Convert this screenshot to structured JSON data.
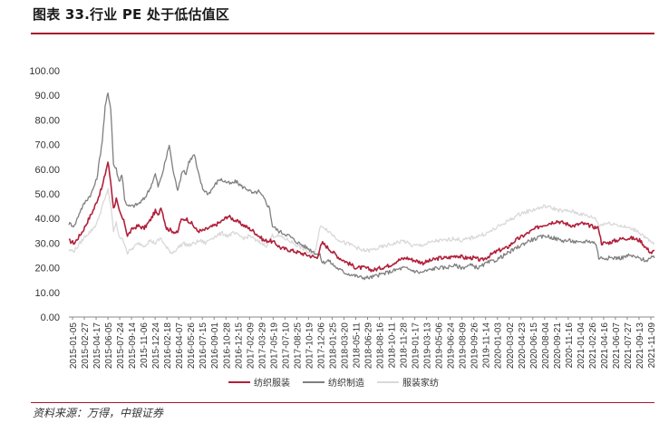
{
  "title": "图表 33.行业 PE 处于低估值区",
  "source": "资料来源：万得，中银证券",
  "chart_data": {
    "type": "line",
    "ylim": [
      0,
      100
    ],
    "yticks": [
      "0.00",
      "10.00",
      "20.00",
      "30.00",
      "40.00",
      "50.00",
      "60.00",
      "70.00",
      "80.00",
      "90.00",
      "100.00"
    ],
    "xlabels": [
      "2015-01-05",
      "2015-02-27",
      "2015-04-17",
      "2015-06-05",
      "2015-07-24",
      "2015-09-14",
      "2015-11-06",
      "2015-12-24",
      "2016-02-18",
      "2016-04-07",
      "2016-05-26",
      "2016-07-15",
      "2016-09-01",
      "2016-10-28",
      "2016-12-15",
      "2017-02-09",
      "2017-03-29",
      "2017-05-19",
      "2017-07-10",
      "2017-08-25",
      "2017-10-19",
      "2017-12-06",
      "2018-01-25",
      "2018-03-20",
      "2018-05-11",
      "2018-06-29",
      "2018-08-16",
      "2018-10-11",
      "2018-11-28",
      "2019-01-17",
      "2019-03-13",
      "2019-05-06",
      "2019-06-24",
      "2019-08-09",
      "2019-09-26",
      "2019-11-14",
      "2020-01-03",
      "2020-03-02",
      "2020-04-23",
      "2020-06-15",
      "2020-08-04",
      "2020-09-21",
      "2020-11-16",
      "2021-01-04",
      "2021-02-26",
      "2021-04-16",
      "2021-06-07",
      "2021-07-27",
      "2021-09-13",
      "2021-11-09"
    ],
    "grid": false,
    "legend_position": "bottom",
    "series": [
      {
        "name": "纺织服装",
        "color": "#b0203a",
        "values": [
          31,
          34,
          37,
          40,
          45,
          51,
          56,
          63,
          42,
          47,
          38,
          32,
          34,
          37,
          36,
          38,
          37,
          41,
          36,
          35,
          35,
          34,
          35,
          36,
          39,
          40,
          38,
          35,
          35,
          35,
          36,
          37,
          38,
          39,
          40,
          41,
          39,
          38,
          37,
          36,
          35,
          33,
          34,
          33,
          32,
          31,
          31,
          30,
          29,
          28,
          28,
          27,
          27,
          26,
          26,
          25,
          25,
          25,
          25,
          27,
          30,
          30,
          28,
          27,
          26,
          24,
          23,
          22,
          21,
          20,
          20,
          20,
          21,
          20,
          20,
          19,
          19,
          19,
          20,
          21,
          23,
          24,
          24,
          23,
          22,
          22,
          23,
          23,
          24,
          25,
          24,
          24,
          25,
          24,
          24,
          24,
          24,
          23,
          23,
          24,
          25,
          26,
          23,
          26,
          27,
          27,
          28,
          30,
          31,
          32,
          33,
          35,
          36,
          37,
          38,
          39,
          40,
          39,
          38,
          38,
          37,
          38,
          37,
          37,
          36,
          35,
          30,
          30,
          30,
          31,
          32,
          32,
          33,
          33,
          32,
          30,
          28,
          26,
          27
        ],
        "anchors": [
          [
            0,
            31
          ],
          [
            2,
            30
          ],
          [
            5,
            35
          ],
          [
            9,
            44
          ],
          [
            12,
            53
          ],
          [
            14,
            63
          ],
          [
            15,
            55
          ],
          [
            16,
            44
          ],
          [
            17,
            48
          ],
          [
            18,
            43
          ],
          [
            20,
            38
          ],
          [
            21,
            33
          ],
          [
            23,
            36
          ],
          [
            25,
            37
          ],
          [
            27,
            36
          ],
          [
            29,
            39
          ],
          [
            31,
            43
          ],
          [
            32,
            41
          ],
          [
            33,
            45
          ],
          [
            35,
            36
          ],
          [
            37,
            35
          ],
          [
            39,
            34
          ],
          [
            40,
            39
          ],
          [
            42,
            40
          ],
          [
            44,
            38
          ],
          [
            46,
            35
          ],
          [
            48,
            35
          ],
          [
            52,
            37
          ],
          [
            55,
            39
          ],
          [
            57,
            41
          ],
          [
            60,
            39
          ],
          [
            63,
            37
          ],
          [
            66,
            35
          ],
          [
            68,
            33
          ],
          [
            70,
            31
          ],
          [
            72,
            31
          ],
          [
            74,
            30
          ],
          [
            76,
            28
          ],
          [
            80,
            27
          ],
          [
            83,
            26
          ],
          [
            86,
            25
          ],
          [
            89,
            24
          ],
          [
            90,
            28
          ],
          [
            91,
            30
          ],
          [
            94,
            27
          ],
          [
            97,
            24
          ],
          [
            100,
            22
          ],
          [
            103,
            20
          ],
          [
            106,
            20
          ],
          [
            109,
            19
          ],
          [
            112,
            20
          ],
          [
            115,
            21
          ],
          [
            118,
            23
          ],
          [
            121,
            24
          ],
          [
            124,
            23
          ],
          [
            127,
            22
          ],
          [
            130,
            23
          ],
          [
            133,
            24
          ],
          [
            136,
            24
          ],
          [
            139,
            25
          ],
          [
            142,
            24
          ],
          [
            145,
            24
          ],
          [
            148,
            23
          ],
          [
            151,
            25
          ],
          [
            154,
            27
          ],
          [
            157,
            28
          ],
          [
            160,
            31
          ],
          [
            163,
            33
          ],
          [
            166,
            35
          ],
          [
            169,
            37
          ],
          [
            172,
            38
          ],
          [
            175,
            39
          ],
          [
            178,
            38
          ],
          [
            181,
            37
          ],
          [
            184,
            38
          ],
          [
            187,
            37
          ],
          [
            190,
            36
          ],
          [
            191,
            30
          ],
          [
            193,
            30
          ],
          [
            196,
            31
          ],
          [
            199,
            32
          ],
          [
            202,
            32
          ],
          [
            205,
            31
          ],
          [
            207,
            28
          ],
          [
            209,
            26
          ],
          [
            210,
            27
          ]
        ]
      },
      {
        "name": "纺织制造",
        "color": "#7f7f7f",
        "anchors": [
          [
            0,
            38
          ],
          [
            2,
            37
          ],
          [
            4,
            43
          ],
          [
            6,
            47
          ],
          [
            8,
            50
          ],
          [
            10,
            56
          ],
          [
            12,
            72
          ],
          [
            13,
            85
          ],
          [
            14,
            91
          ],
          [
            15,
            85
          ],
          [
            16,
            62
          ],
          [
            17,
            60
          ],
          [
            18,
            55
          ],
          [
            19,
            58
          ],
          [
            20,
            48
          ],
          [
            21,
            45
          ],
          [
            23,
            45
          ],
          [
            25,
            46
          ],
          [
            27,
            48
          ],
          [
            29,
            52
          ],
          [
            31,
            58
          ],
          [
            32,
            53
          ],
          [
            33,
            56
          ],
          [
            35,
            65
          ],
          [
            36,
            70
          ],
          [
            37,
            62
          ],
          [
            38,
            56
          ],
          [
            39,
            52
          ],
          [
            41,
            60
          ],
          [
            42,
            58
          ],
          [
            43,
            63
          ],
          [
            45,
            66
          ],
          [
            46,
            60
          ],
          [
            48,
            52
          ],
          [
            50,
            50
          ],
          [
            52,
            53
          ],
          [
            54,
            56
          ],
          [
            56,
            55
          ],
          [
            58,
            54
          ],
          [
            60,
            55
          ],
          [
            62,
            53
          ],
          [
            64,
            52
          ],
          [
            66,
            50
          ],
          [
            68,
            51
          ],
          [
            70,
            48
          ],
          [
            72,
            44
          ],
          [
            73,
            37
          ],
          [
            75,
            35
          ],
          [
            77,
            34
          ],
          [
            79,
            33
          ],
          [
            81,
            31
          ],
          [
            84,
            29
          ],
          [
            87,
            27
          ],
          [
            90,
            25
          ],
          [
            91,
            22
          ],
          [
            93,
            23
          ],
          [
            96,
            20
          ],
          [
            99,
            18
          ],
          [
            102,
            17
          ],
          [
            105,
            16
          ],
          [
            108,
            16
          ],
          [
            111,
            17
          ],
          [
            114,
            18
          ],
          [
            117,
            19
          ],
          [
            120,
            20
          ],
          [
            123,
            19
          ],
          [
            126,
            18
          ],
          [
            129,
            19
          ],
          [
            132,
            20
          ],
          [
            135,
            20
          ],
          [
            138,
            21
          ],
          [
            141,
            20
          ],
          [
            144,
            21
          ],
          [
            147,
            20
          ],
          [
            150,
            22
          ],
          [
            153,
            23
          ],
          [
            156,
            25
          ],
          [
            159,
            27
          ],
          [
            162,
            29
          ],
          [
            165,
            31
          ],
          [
            168,
            32
          ],
          [
            171,
            33
          ],
          [
            174,
            32
          ],
          [
            177,
            31
          ],
          [
            180,
            31
          ],
          [
            183,
            30
          ],
          [
            186,
            31
          ],
          [
            189,
            30
          ],
          [
            190,
            24
          ],
          [
            192,
            24
          ],
          [
            195,
            24
          ],
          [
            198,
            24
          ],
          [
            201,
            25
          ],
          [
            204,
            24
          ],
          [
            207,
            23
          ],
          [
            209,
            24
          ],
          [
            210,
            24
          ]
        ]
      },
      {
        "name": "服装家纺",
        "color": "#d9d9d9",
        "anchors": [
          [
            0,
            27
          ],
          [
            2,
            27
          ],
          [
            4,
            30
          ],
          [
            6,
            33
          ],
          [
            8,
            35
          ],
          [
            10,
            38
          ],
          [
            12,
            45
          ],
          [
            13,
            48
          ],
          [
            14,
            52
          ],
          [
            15,
            45
          ],
          [
            16,
            35
          ],
          [
            17,
            38
          ],
          [
            18,
            33
          ],
          [
            20,
            30
          ],
          [
            21,
            26
          ],
          [
            23,
            28
          ],
          [
            25,
            30
          ],
          [
            27,
            29
          ],
          [
            29,
            31
          ],
          [
            31,
            30
          ],
          [
            33,
            32
          ],
          [
            35,
            28
          ],
          [
            37,
            26
          ],
          [
            39,
            28
          ],
          [
            41,
            30
          ],
          [
            43,
            29
          ],
          [
            45,
            30
          ],
          [
            47,
            31
          ],
          [
            49,
            30
          ],
          [
            51,
            32
          ],
          [
            53,
            33
          ],
          [
            55,
            34
          ],
          [
            57,
            33
          ],
          [
            59,
            34
          ],
          [
            61,
            33
          ],
          [
            63,
            32
          ],
          [
            65,
            33
          ],
          [
            67,
            31
          ],
          [
            69,
            30
          ],
          [
            71,
            29
          ],
          [
            73,
            33
          ],
          [
            75,
            33
          ],
          [
            77,
            32
          ],
          [
            79,
            31
          ],
          [
            82,
            29
          ],
          [
            85,
            27
          ],
          [
            88,
            25
          ],
          [
            90,
            36
          ],
          [
            91,
            37
          ],
          [
            93,
            35
          ],
          [
            96,
            32
          ],
          [
            99,
            30
          ],
          [
            102,
            29
          ],
          [
            105,
            27
          ],
          [
            108,
            27
          ],
          [
            111,
            28
          ],
          [
            114,
            29
          ],
          [
            117,
            30
          ],
          [
            120,
            31
          ],
          [
            123,
            29
          ],
          [
            126,
            29
          ],
          [
            129,
            30
          ],
          [
            132,
            31
          ],
          [
            135,
            31
          ],
          [
            138,
            32
          ],
          [
            141,
            31
          ],
          [
            144,
            32
          ],
          [
            147,
            33
          ],
          [
            150,
            34
          ],
          [
            153,
            36
          ],
          [
            156,
            38
          ],
          [
            159,
            40
          ],
          [
            162,
            42
          ],
          [
            165,
            43
          ],
          [
            168,
            44
          ],
          [
            171,
            45
          ],
          [
            174,
            44
          ],
          [
            177,
            43
          ],
          [
            180,
            43
          ],
          [
            183,
            42
          ],
          [
            186,
            41
          ],
          [
            189,
            40
          ],
          [
            190,
            37
          ],
          [
            192,
            38
          ],
          [
            195,
            38
          ],
          [
            198,
            37
          ],
          [
            201,
            36
          ],
          [
            204,
            35
          ],
          [
            207,
            32
          ],
          [
            209,
            30
          ],
          [
            210,
            30
          ]
        ]
      }
    ]
  }
}
